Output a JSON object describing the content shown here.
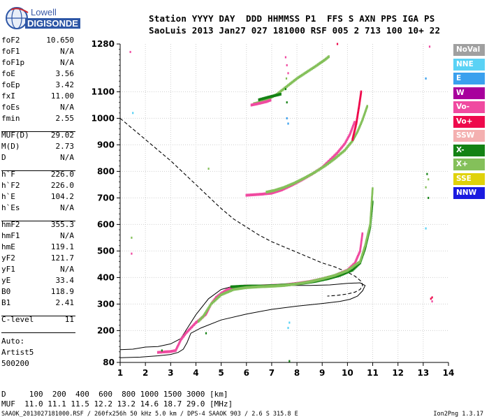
{
  "logo": {
    "line1": "Lowell",
    "line2": "DIGISONDE"
  },
  "header": {
    "row1": "Station YYYY DAY  DDD HHMMSS P1  FFS S AXN PPS IGA PS",
    "row2": "SaoLuis 2013 Jan27 027 181000 RSF 005 2 713 100 10+ 22"
  },
  "params": [
    {
      "name": "foF2",
      "value": "10.650"
    },
    {
      "name": "foF1",
      "value": "N/A"
    },
    {
      "name": "foF1p",
      "value": "N/A"
    },
    {
      "name": "foE",
      "value": "3.56"
    },
    {
      "name": "foEp",
      "value": "3.42"
    },
    {
      "name": "fxI",
      "value": "11.00"
    },
    {
      "name": "foEs",
      "value": "N/A"
    },
    {
      "name": "fmin",
      "value": "2.55"
    },
    {
      "name": "MUF(D)",
      "value": "29.02"
    },
    {
      "name": "M(D)",
      "value": "2.73"
    },
    {
      "name": "D",
      "value": "N/A"
    },
    {
      "name": "h`F",
      "value": "226.0"
    },
    {
      "name": "h`F2",
      "value": "226.0"
    },
    {
      "name": "h`E",
      "value": "104.2"
    },
    {
      "name": "h`Es",
      "value": "N/A"
    },
    {
      "name": "hmF2",
      "value": "355.3"
    },
    {
      "name": "hmF1",
      "value": "N/A"
    },
    {
      "name": "hmE",
      "value": "119.1"
    },
    {
      "name": "yF2",
      "value": "121.7"
    },
    {
      "name": "yF1",
      "value": "N/A"
    },
    {
      "name": "yE",
      "value": "33.4"
    },
    {
      "name": "B0",
      "value": "118.9"
    },
    {
      "name": "B1",
      "value": "2.41"
    },
    {
      "name": "C-level",
      "value": "11"
    }
  ],
  "auto": {
    "line1": "Auto:",
    "line2": "Artist5",
    "line3": "500200"
  },
  "legend": [
    {
      "label": "NoVal",
      "color": "#a0a0a0"
    },
    {
      "label": "NNE",
      "color": "#5ad2f5"
    },
    {
      "label": "E",
      "color": "#3aa0ee"
    },
    {
      "label": "W",
      "color": "#a8009c"
    },
    {
      "label": "Vo-",
      "color": "#f04aa0"
    },
    {
      "label": "Vo+",
      "color": "#ee0a4c"
    },
    {
      "label": "SSW",
      "color": "#f4b0b0"
    },
    {
      "label": "X-",
      "color": "#148214"
    },
    {
      "label": "X+",
      "color": "#84c05a"
    },
    {
      "label": "SSE",
      "color": "#e0d20a"
    },
    {
      "label": "NNW",
      "color": "#1a1ae0"
    }
  ],
  "muf_table": {
    "row_d": "D     100  200  400  600  800 1000 1500 3000 [km]",
    "row_muf": "MUF  11.0 11.1 11.5 12.2 13.2 14.6 18.7 29.0 [MHz]"
  },
  "footer": {
    "left": "SAAOK_2013027181000.RSF / 260fx256h 50 kHz 5.0 km / DPS-4 SAAOK 903 / 2.6 S 315.8 E",
    "right": "Ion2Png 1.3.17"
  },
  "chart_data": {
    "type": "scatter",
    "title": "",
    "xlabel": "",
    "ylabel": "",
    "xlim": [
      1,
      14
    ],
    "ylim": [
      80,
      1280
    ],
    "x_ticks": [
      "1",
      "2",
      "3",
      "4",
      "5",
      "6",
      "7",
      "8",
      "9",
      "10",
      "11",
      "12",
      "13",
      "14"
    ],
    "y_ticks": [
      "80",
      "200",
      "300",
      "400",
      "500",
      "600",
      "700",
      "800",
      "900",
      "1000",
      "1100",
      "1280"
    ],
    "grid": true,
    "traces": [
      {
        "series": "Vo-",
        "x": [
          2.5,
          2.8,
          3.0,
          3.2,
          3.4,
          3.6,
          4.0,
          4.2,
          4.4,
          4.6,
          4.8,
          5.0,
          5.2,
          5.4,
          5.6,
          6.0,
          6.5,
          7.0,
          7.5,
          8.0,
          8.5,
          9.0,
          9.5,
          10.0,
          10.3,
          10.5,
          10.6
        ],
        "y": [
          118,
          120,
          121,
          125,
          165,
          190,
          230,
          245,
          262,
          300,
          325,
          340,
          352,
          360,
          365,
          368,
          368,
          370,
          372,
          378,
          385,
          395,
          408,
          428,
          455,
          500,
          570
        ]
      },
      {
        "series": "X-",
        "x": [
          5.4,
          5.8,
          6.2,
          6.7,
          7.2,
          7.7,
          8.2,
          8.7,
          9.2,
          9.7,
          10.2,
          10.5,
          10.7,
          10.9,
          11.0
        ],
        "y": [
          365,
          367,
          368,
          368,
          370,
          373,
          378,
          385,
          395,
          408,
          428,
          455,
          510,
          590,
          690
        ]
      },
      {
        "series": "X+",
        "x": [
          4.1,
          4.3,
          4.6,
          5.0,
          5.5,
          6.0,
          6.5,
          7.0,
          7.5,
          8.0,
          8.5,
          9.0,
          9.5,
          10.0,
          10.5,
          10.7,
          10.9,
          11.0
        ],
        "y": [
          235,
          255,
          300,
          335,
          355,
          362,
          365,
          367,
          370,
          376,
          384,
          395,
          408,
          426,
          460,
          520,
          600,
          740
        ]
      },
      {
        "series": "Vo-",
        "x": [
          6.0,
          6.3,
          6.6,
          7.0,
          7.4,
          7.8,
          8.2,
          8.6,
          9.0,
          9.3,
          9.6,
          9.9,
          10.1,
          10.3
        ],
        "y": [
          710,
          712,
          714,
          718,
          730,
          748,
          768,
          790,
          815,
          842,
          870,
          905,
          940,
          990
        ]
      },
      {
        "series": "X+",
        "x": [
          6.8,
          7.1,
          7.5,
          7.9,
          8.3,
          8.7,
          9.1,
          9.5,
          9.9,
          10.2,
          10.4,
          10.6,
          10.8
        ],
        "y": [
          722,
          728,
          740,
          756,
          775,
          796,
          820,
          848,
          880,
          915,
          950,
          995,
          1050
        ]
      },
      {
        "series": "Vo+",
        "x": [
          10.2,
          10.35,
          10.45,
          10.55
        ],
        "y": [
          920,
          980,
          1040,
          1105
        ]
      },
      {
        "series": "X+",
        "x": [
          6.3,
          6.6,
          6.9,
          7.2,
          7.6,
          8.0,
          8.4,
          8.8,
          9.1,
          9.3
        ],
        "y": [
          1055,
          1062,
          1075,
          1090,
          1120,
          1150,
          1175,
          1200,
          1220,
          1235
        ]
      },
      {
        "series": "X-",
        "x": [
          6.5,
          6.8,
          7.1,
          7.4
        ],
        "y": [
          1070,
          1078,
          1085,
          1092
        ]
      },
      {
        "series": "Vo-",
        "x": [
          6.2,
          6.5,
          6.8,
          7.0
        ],
        "y": [
          1050,
          1056,
          1063,
          1070
        ]
      }
    ],
    "scatter_points": [
      {
        "series": "Vo-",
        "x": [
          1.4,
          1.45,
          13.25,
          13.35,
          7.55,
          7.6,
          7.65
        ],
        "y": [
          1250,
          490,
          1270,
          310,
          1230,
          1200,
          1170
        ]
      },
      {
        "series": "NNE",
        "x": [
          1.5,
          7.7,
          7.65,
          13.1
        ],
        "y": [
          1020,
          230,
          210,
          585
        ]
      },
      {
        "series": "E",
        "x": [
          7.6,
          7.65,
          13.1
        ],
        "y": [
          1000,
          980,
          1150
        ]
      },
      {
        "series": "X-",
        "x": [
          7.55,
          7.6,
          7.7,
          13.15,
          13.2,
          4.4,
          2.65
        ],
        "y": [
          1110,
          1060,
          85,
          790,
          700,
          190,
          125
        ]
      },
      {
        "series": "X+",
        "x": [
          1.45,
          4.5,
          7.58,
          13.2,
          13.1
        ],
        "y": [
          550,
          810,
          1150,
          770,
          740
        ]
      },
      {
        "series": "Vo+",
        "x": [
          9.6,
          13.35,
          13.3
        ],
        "y": [
          1280,
          325,
          320
        ]
      }
    ],
    "curves": {
      "solid_line": {
        "x": [
          1,
          1.8,
          2.5,
          3.0,
          3.3,
          3.5,
          3.65,
          3.8,
          4.2,
          5.0,
          6.0,
          7.0,
          8.0,
          9.0,
          9.7,
          10.1,
          10.4,
          10.6,
          10.7,
          10.5,
          10.0,
          9.3,
          8.5,
          7.5,
          6.5,
          5.5,
          5.0,
          4.5,
          4.0,
          3.6,
          3.4,
          3.0,
          2.5,
          2.0,
          1.5,
          1.0
        ],
        "y": [
          98,
          100,
          105,
          110,
          118,
          130,
          155,
          190,
          210,
          240,
          262,
          280,
          292,
          302,
          310,
          318,
          330,
          350,
          370,
          380,
          378,
          372,
          370,
          370,
          370,
          368,
          355,
          320,
          260,
          200,
          170,
          150,
          140,
          138,
          130,
          128
        ]
      },
      "dashed_line": {
        "x": [
          1.0,
          1.5,
          2.0,
          2.5,
          3.0,
          3.5,
          4.0,
          4.5,
          5.0,
          5.5,
          6.0,
          6.5,
          7.0,
          7.5,
          8.0,
          8.5,
          9.0,
          9.5,
          10.0,
          10.3,
          10.55,
          10.6,
          10.5,
          10.3,
          10.0,
          9.6,
          9.2
        ],
        "y": [
          1000,
          960,
          920,
          880,
          840,
          795,
          750,
          705,
          660,
          620,
          590,
          560,
          535,
          515,
          495,
          475,
          455,
          440,
          420,
          405,
          385,
          370,
          355,
          345,
          338,
          333,
          330
        ]
      }
    }
  }
}
